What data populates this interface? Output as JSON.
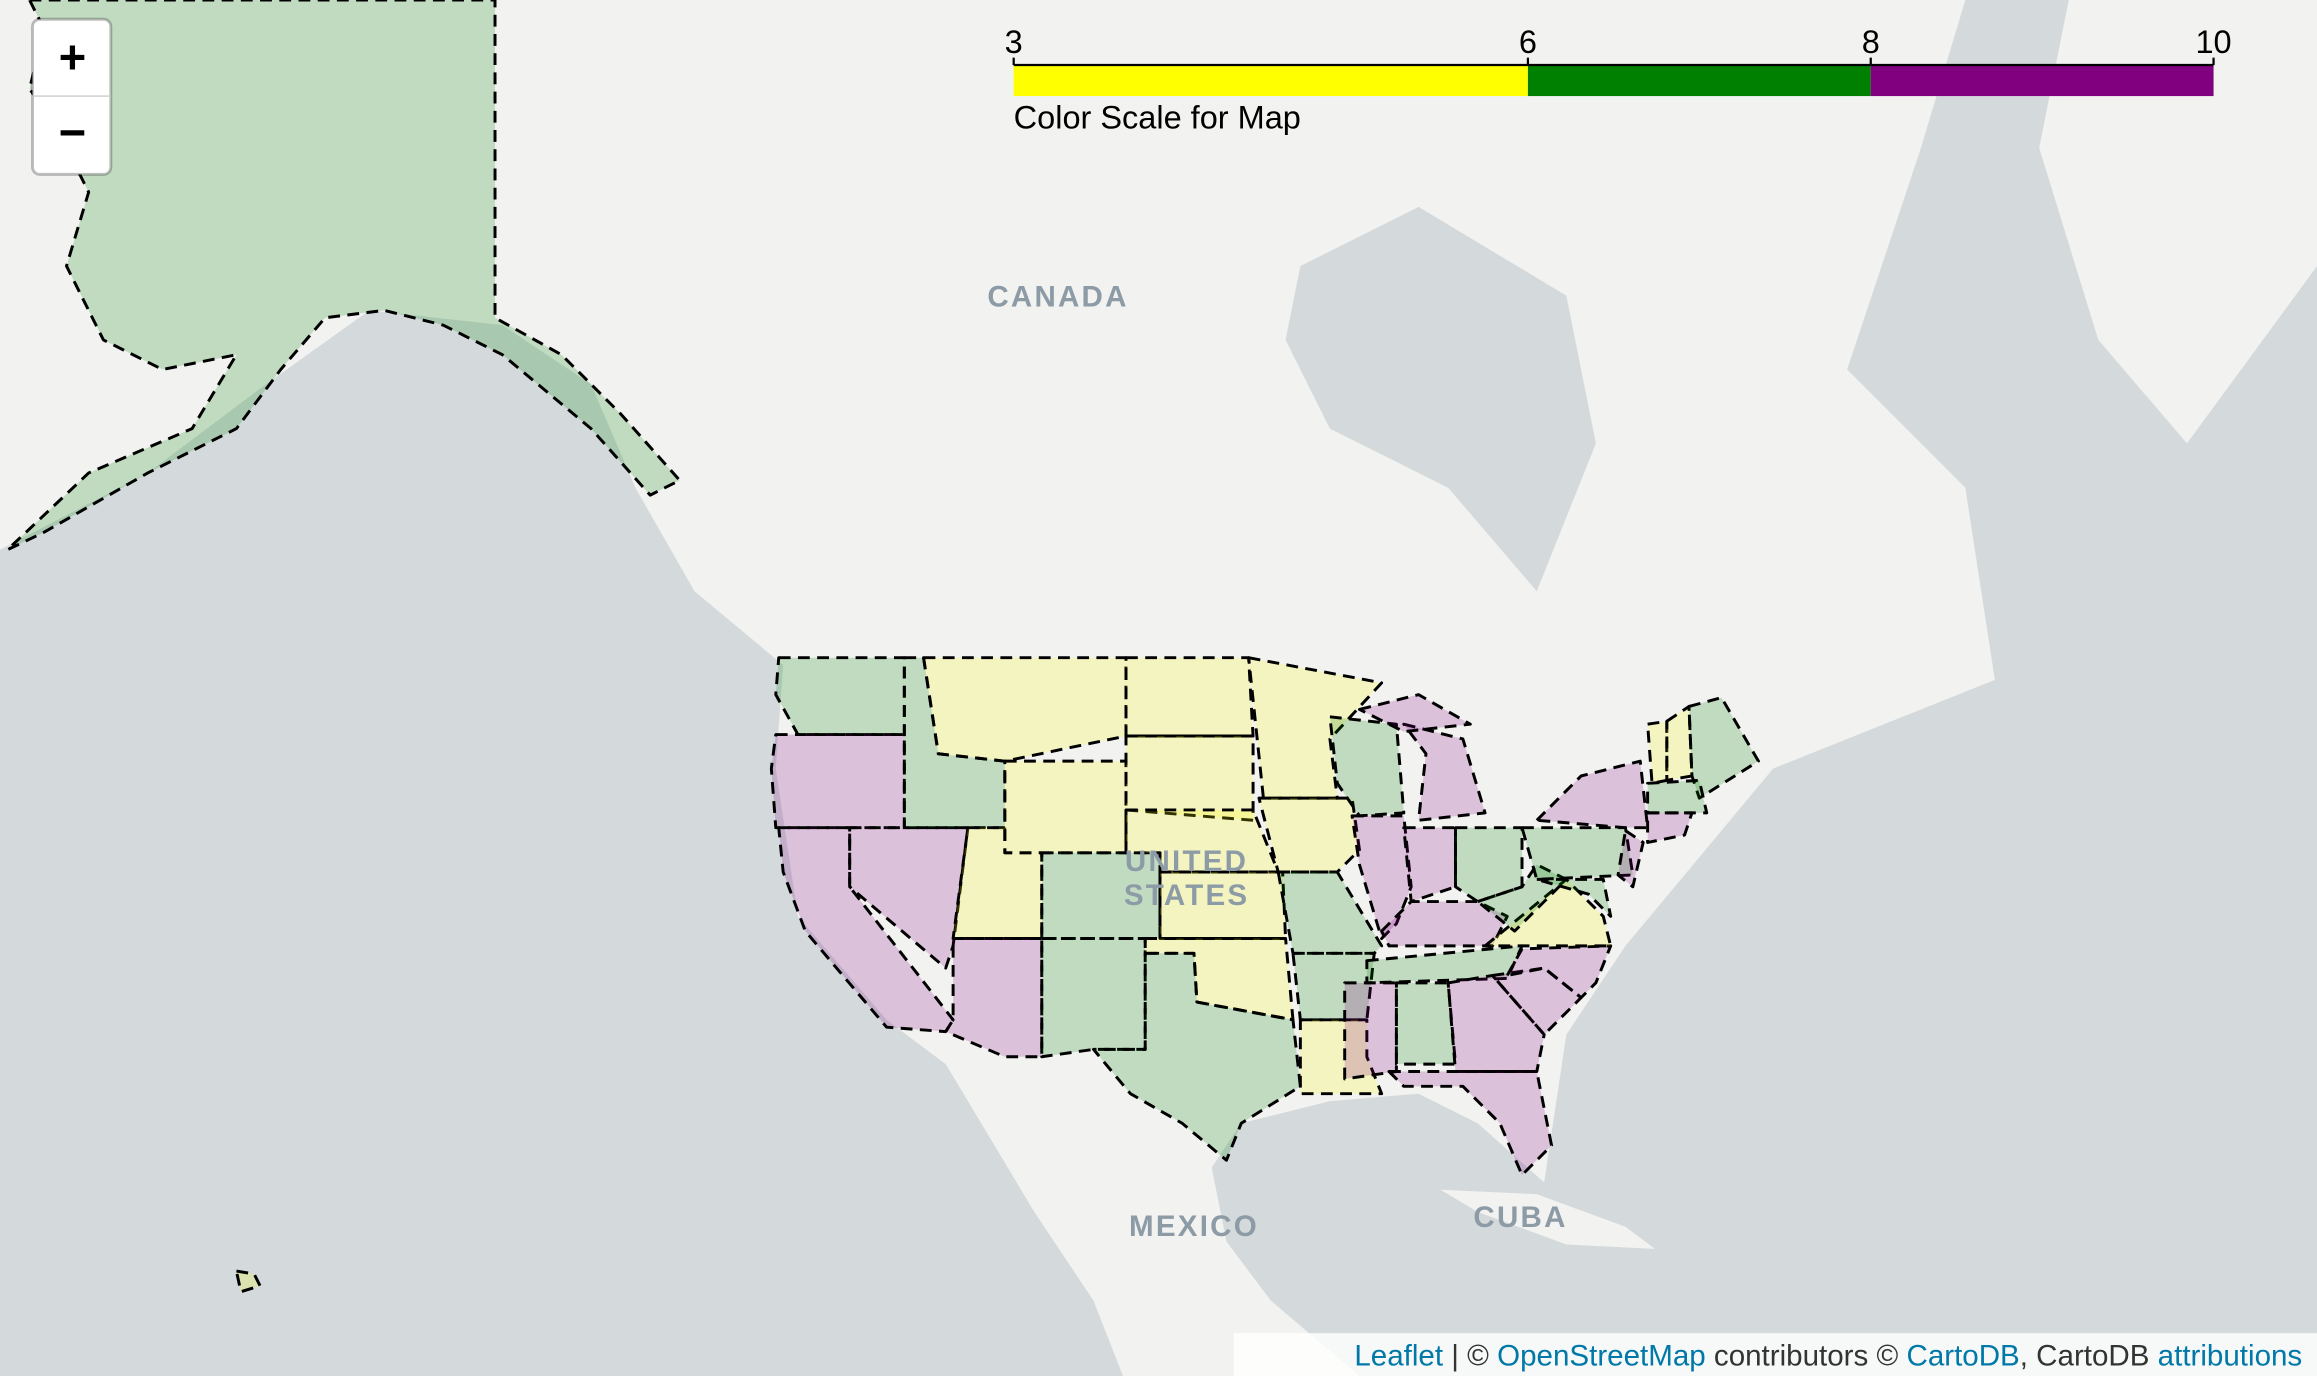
{
  "map": {
    "labels": {
      "canada": "CANADA",
      "united_states": [
        "UNITED",
        "STATES"
      ],
      "mexico": "MEXICO",
      "cuba": "CUBA"
    }
  },
  "zoom": {
    "zoom_in": "+",
    "zoom_out": "−"
  },
  "legend": {
    "caption": "Color Scale for Map",
    "ticks": [
      3,
      6,
      8,
      10
    ],
    "colors": [
      "#ffff00",
      "#008000",
      "#800080"
    ]
  },
  "attribution": [
    {
      "text": "Leaflet",
      "link": true
    },
    {
      "text": " | © ",
      "link": false
    },
    {
      "text": "OpenStreetMap",
      "link": true
    },
    {
      "text": " contributors © ",
      "link": false
    },
    {
      "text": "CartoDB",
      "link": true
    },
    {
      "text": ", CartoDB ",
      "link": false
    },
    {
      "text": "attributions",
      "link": true
    }
  ]
}
